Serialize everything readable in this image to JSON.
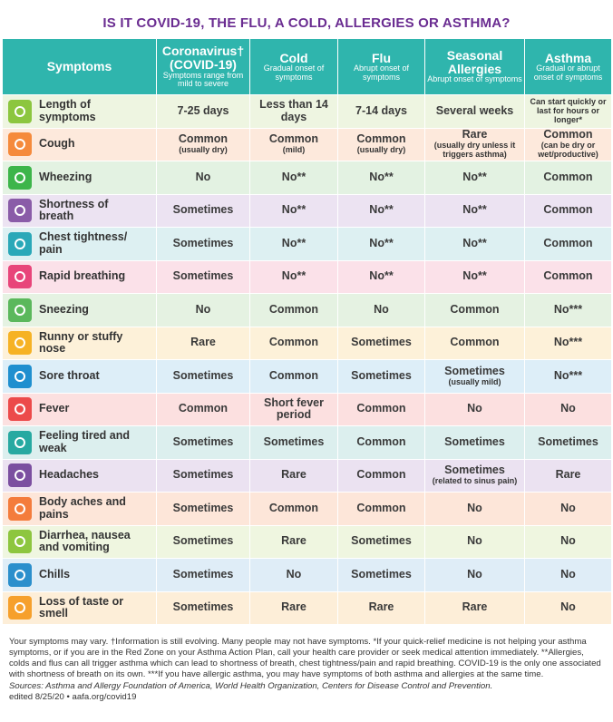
{
  "title": "IS IT COVID-19, THE FLU, A COLD, ALLERGIES OR ASTHMA?",
  "columns": [
    {
      "name": "Symptoms"
    },
    {
      "name": "Coronavirus†",
      "sub": "(COVID-19)",
      "note": "Symptoms range from mild to severe"
    },
    {
      "name": "Cold",
      "note": "Gradual onset of symptoms"
    },
    {
      "name": "Flu",
      "note": "Abrupt onset of symptoms"
    },
    {
      "name": "Seasonal Allergies",
      "note": "Abrupt onset of symptoms"
    },
    {
      "name": "Asthma",
      "note": "Gradual or abrupt onset of symptoms"
    }
  ],
  "rows": [
    {
      "symptom": "Length of symptoms",
      "cells": [
        {
          "text": "7-25 days"
        },
        {
          "text": "Less than 14 days"
        },
        {
          "text": "7-14 days"
        },
        {
          "text": "Several weeks"
        },
        {
          "note": "Can start quickly or last for hours or longer*"
        }
      ]
    },
    {
      "symptom": "Cough",
      "cells": [
        {
          "text": "Common",
          "note": "(usually dry)"
        },
        {
          "text": "Common",
          "note": "(mild)"
        },
        {
          "text": "Common",
          "note": "(usually dry)"
        },
        {
          "text": "Rare",
          "note": "(usually dry unless it triggers asthma)"
        },
        {
          "text": "Common",
          "note": "(can be dry or wet/productive)"
        }
      ]
    },
    {
      "symptom": "Wheezing",
      "cells": [
        {
          "text": "No"
        },
        {
          "text": "No**"
        },
        {
          "text": "No**"
        },
        {
          "text": "No**"
        },
        {
          "text": "Common"
        }
      ]
    },
    {
      "symptom": "Shortness of breath",
      "cells": [
        {
          "text": "Sometimes"
        },
        {
          "text": "No**"
        },
        {
          "text": "No**"
        },
        {
          "text": "No**"
        },
        {
          "text": "Common"
        }
      ]
    },
    {
      "symptom": "Chest tightness/ pain",
      "cells": [
        {
          "text": "Sometimes"
        },
        {
          "text": "No**"
        },
        {
          "text": "No**"
        },
        {
          "text": "No**"
        },
        {
          "text": "Common"
        }
      ]
    },
    {
      "symptom": "Rapid breathing",
      "cells": [
        {
          "text": "Sometimes"
        },
        {
          "text": "No**"
        },
        {
          "text": "No**"
        },
        {
          "text": "No**"
        },
        {
          "text": "Common"
        }
      ]
    },
    {
      "symptom": "Sneezing",
      "cells": [
        {
          "text": "No"
        },
        {
          "text": "Common"
        },
        {
          "text": "No"
        },
        {
          "text": "Common"
        },
        {
          "text": "No***"
        }
      ]
    },
    {
      "symptom": "Runny or stuffy nose",
      "cells": [
        {
          "text": "Rare"
        },
        {
          "text": "Common"
        },
        {
          "text": "Sometimes"
        },
        {
          "text": "Common"
        },
        {
          "text": "No***"
        }
      ]
    },
    {
      "symptom": "Sore throat",
      "cells": [
        {
          "text": "Sometimes"
        },
        {
          "text": "Common"
        },
        {
          "text": "Sometimes"
        },
        {
          "text": "Sometimes",
          "note": "(usually mild)"
        },
        {
          "text": "No***"
        }
      ]
    },
    {
      "symptom": "Fever",
      "cells": [
        {
          "text": "Common"
        },
        {
          "text": "Short fever period"
        },
        {
          "text": "Common"
        },
        {
          "text": "No"
        },
        {
          "text": "No"
        }
      ]
    },
    {
      "symptom": "Feeling tired and weak",
      "cells": [
        {
          "text": "Sometimes"
        },
        {
          "text": "Sometimes"
        },
        {
          "text": "Common"
        },
        {
          "text": "Sometimes"
        },
        {
          "text": "Sometimes"
        }
      ]
    },
    {
      "symptom": "Headaches",
      "cells": [
        {
          "text": "Sometimes"
        },
        {
          "text": "Rare"
        },
        {
          "text": "Common"
        },
        {
          "text": "Sometimes",
          "note": "(related to sinus pain)"
        },
        {
          "text": "Rare"
        }
      ]
    },
    {
      "symptom": "Body aches and pains",
      "cells": [
        {
          "text": "Sometimes"
        },
        {
          "text": "Common"
        },
        {
          "text": "Common"
        },
        {
          "text": "No"
        },
        {
          "text": "No"
        }
      ]
    },
    {
      "symptom": "Diarrhea, nausea and vomiting",
      "cells": [
        {
          "text": "Sometimes"
        },
        {
          "text": "Rare"
        },
        {
          "text": "Sometimes"
        },
        {
          "text": "No"
        },
        {
          "text": "No"
        }
      ]
    },
    {
      "symptom": "Chills",
      "cells": [
        {
          "text": "Sometimes"
        },
        {
          "text": "No"
        },
        {
          "text": "Sometimes"
        },
        {
          "text": "No"
        },
        {
          "text": "No"
        }
      ]
    },
    {
      "symptom": "Loss of taste or smell",
      "cells": [
        {
          "text": "Sometimes"
        },
        {
          "text": "Rare"
        },
        {
          "text": "Rare"
        },
        {
          "text": "Rare"
        },
        {
          "text": "No"
        }
      ]
    }
  ],
  "footnote": "Your symptoms may vary. †Information is still evolving. Many people may not have symptoms. *If your quick-relief medicine is not helping your asthma symptoms, or if you are in the Red Zone on your Asthma Action Plan, call your health care provider or seek medical attention immediately. **Allergies, colds and flus can all trigger asthma which can lead to shortness of breath, chest tightness/pain and rapid breathing. COVID-19 is the only one associated with shortness of breath on its own. ***If you have allergic asthma, you may have symptoms of both asthma and allergies at the same time.",
  "sources": "Sources: Asthma and Allergy Foundation of America, World Health Organization, Centers for Disease Control and Prevention.",
  "edited": "edited 8/25/20 • aafa.org/covid19"
}
